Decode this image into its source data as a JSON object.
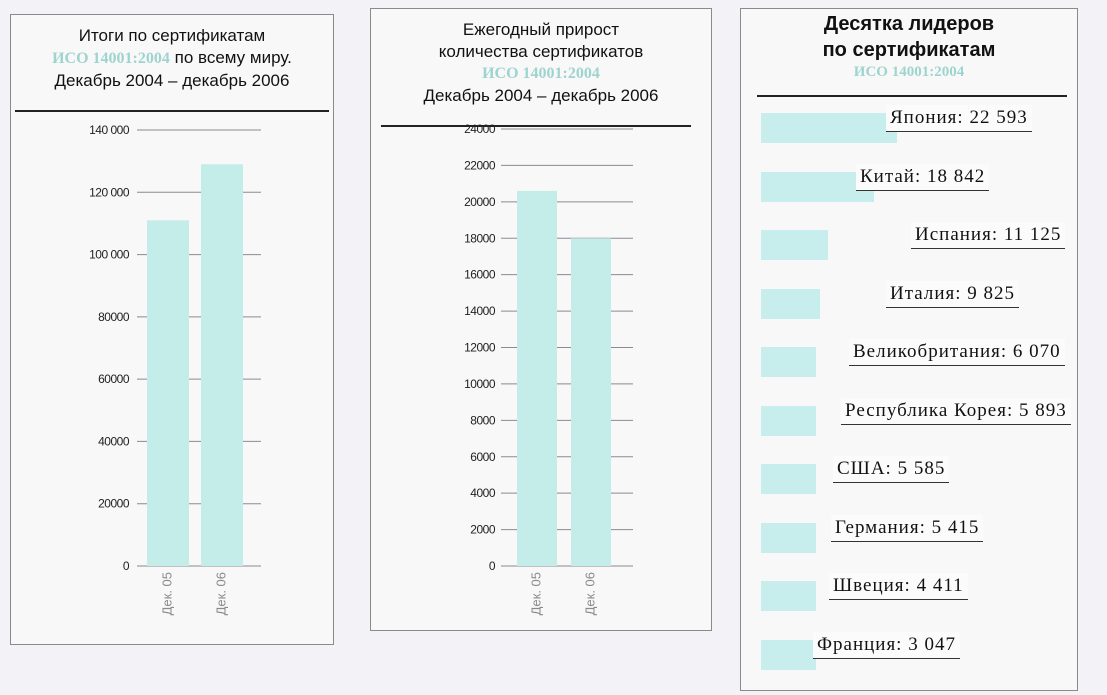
{
  "chart_data": [
    {
      "type": "bar",
      "title_line1": "Итоги по сертификатам",
      "title_iso": "ИСО 14001:2004",
      "title_line2_rest": " по всему миру.",
      "title_line3": "Декабрь 2004 – декабрь 2006",
      "categories": [
        "Дек. 05",
        "Дек. 06"
      ],
      "values": [
        111000,
        129000
      ],
      "ylim": [
        0,
        140000
      ],
      "yticks": [
        "0",
        "20000",
        "40000",
        "60000",
        "80000",
        "100 000",
        "120 000",
        "140 000"
      ],
      "bar_color": "#c4ede9",
      "grid": true
    },
    {
      "type": "bar",
      "title_line1": "Ежегодный прирост",
      "title_line2": "количества сертификатов",
      "title_iso": "ИСО 14001:2004",
      "title_line4": "Декабрь 2004 –  декабрь 2006",
      "categories": [
        "Дек. 05",
        "Дек. 06"
      ],
      "values": [
        20600,
        18000
      ],
      "ylim": [
        0,
        24000
      ],
      "yticks": [
        "0",
        "2000",
        "4000",
        "6000",
        "8000",
        "10000",
        "12000",
        "14000",
        "16000",
        "18000",
        "20000",
        "22000",
        "24000"
      ],
      "bar_color": "#c4ede9",
      "grid": true
    },
    {
      "type": "bar",
      "orientation": "horizontal",
      "title_line1": "Десятка лидеров",
      "title_line2": "по сертификатам",
      "title_iso": "ИСО 14001:2004",
      "bar_color": "#c7eeed",
      "items": [
        {
          "label": "Япония: 22 593",
          "value": 22593
        },
        {
          "label": "Китай: 18 842",
          "value": 18842
        },
        {
          "label": "Испания: 11 125",
          "value": 11125
        },
        {
          "label": "Италия: 9 825",
          "value": 9825
        },
        {
          "label": "Великобритания: 6 070",
          "value": 6070
        },
        {
          "label": "Республика Корея: 5 893",
          "value": 5893
        },
        {
          "label": "США: 5 585",
          "value": 5585
        },
        {
          "label": "Германия: 5 415",
          "value": 5415
        },
        {
          "label": "Швеция: 4 411",
          "value": 4411
        },
        {
          "label": "Франция: 3 047",
          "value": 3047
        }
      ]
    }
  ]
}
